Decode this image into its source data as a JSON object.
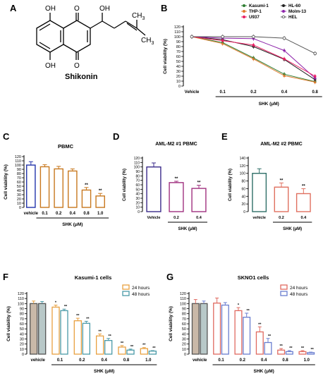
{
  "panels": {
    "A": {
      "letter": "A",
      "molecule_name": "Shikonin"
    },
    "B": {
      "letter": "B"
    },
    "C": {
      "letter": "C"
    },
    "D": {
      "letter": "D"
    },
    "E": {
      "letter": "E"
    },
    "F": {
      "letter": "F"
    },
    "G": {
      "letter": "G"
    }
  },
  "molecule_labels": {
    "oh1": "OH",
    "o1": "O",
    "oh2": "OH",
    "oh3": "OH",
    "o2": "O",
    "ch3a": "CH",
    "ch3b": "CH",
    "sub3": "3"
  },
  "chart_data": [
    {
      "id": "B",
      "type": "line",
      "title": "",
      "xlabel": "SHK (μM)",
      "ylabel": "Cell viability (%)",
      "categories": [
        "Vehicle",
        "0.1",
        "0.2",
        "0.4",
        "0.8"
      ],
      "ylim": [
        0,
        120
      ],
      "yticks": [
        0,
        10,
        20,
        30,
        40,
        50,
        60,
        70,
        80,
        90,
        100,
        110,
        120
      ],
      "legend_position": "top-right",
      "series": [
        {
          "name": "Kasumi-1",
          "color": "#2e7d32",
          "marker": "circle",
          "values": [
            100,
            88,
            57,
            24,
            9
          ]
        },
        {
          "name": "HL-60",
          "color": "#222222",
          "marker": "square",
          "values": [
            100,
            94,
            80,
            54,
            13
          ]
        },
        {
          "name": "THP-1",
          "color": "#e07a2e",
          "marker": "triangle",
          "values": [
            100,
            86,
            55,
            21,
            8
          ]
        },
        {
          "name": "Molm-13",
          "color": "#8e24aa",
          "marker": "diamond",
          "values": [
            100,
            97,
            96,
            72,
            16
          ]
        },
        {
          "name": "U937",
          "color": "#e91e63",
          "marker": "circle",
          "values": [
            100,
            92,
            83,
            55,
            20
          ]
        },
        {
          "name": "HEL",
          "color": "#555555",
          "marker": "circle-open",
          "values": [
            100,
            100,
            100,
            97,
            66
          ]
        }
      ]
    },
    {
      "id": "C",
      "type": "bar",
      "title": "PBMC",
      "xlabel": "SHK (μM)",
      "ylabel": "Cell viability (%)",
      "categories": [
        "vehicle",
        "0.1",
        "0.2",
        "0.4",
        "0.8",
        "1.0"
      ],
      "values": [
        100,
        96,
        91,
        86,
        41,
        27
      ],
      "errors": [
        8,
        5,
        6,
        5,
        6,
        6
      ],
      "significance": [
        "",
        "",
        "",
        "",
        "**",
        "**"
      ],
      "ylim": [
        0,
        120
      ],
      "yticks": [
        0,
        10,
        20,
        30,
        40,
        50,
        60,
        70,
        80,
        90,
        100,
        110,
        120
      ],
      "colors": [
        "#2233aa",
        "#c8781e",
        "#c8781e",
        "#c8781e",
        "#c8781e",
        "#c8781e"
      ]
    },
    {
      "id": "D",
      "type": "bar",
      "title": "AML-M2 #1 PBMC",
      "xlabel": "SHK (μM)",
      "ylabel": "Cell viability (%)",
      "categories": [
        "Vehicle",
        "0.2",
        "0.4"
      ],
      "values": [
        100,
        65,
        52
      ],
      "errors": [
        9,
        3,
        7
      ],
      "significance": [
        "",
        "**",
        "**"
      ],
      "ylim": [
        0,
        120
      ],
      "yticks": [
        0,
        10,
        20,
        30,
        40,
        50,
        60,
        70,
        80,
        90,
        100,
        110,
        120
      ],
      "colors": [
        "#3a2a8a",
        "#a0307f",
        "#a0307f"
      ]
    },
    {
      "id": "E",
      "type": "bar",
      "title": "AML-M2 #2 PBMC",
      "xlabel": "SHK (μM)",
      "ylabel": "Cell viability (%)",
      "categories": [
        "vehicle",
        "0.2",
        "0.4"
      ],
      "values": [
        100,
        64,
        47
      ],
      "errors": [
        12,
        11,
        13
      ],
      "significance": [
        "",
        "**",
        "**"
      ],
      "ylim": [
        0,
        140
      ],
      "yticks": [
        0,
        20,
        40,
        60,
        80,
        100,
        120,
        140
      ],
      "colors": [
        "#2f6f68",
        "#e07060",
        "#e07060"
      ]
    },
    {
      "id": "F",
      "type": "bar",
      "title": "Kasumi-1 cells",
      "xlabel": "SHK (μM)",
      "ylabel": "Cell viability (%)",
      "categories": [
        "vehicle",
        "0.1",
        "0.2",
        "0.4",
        "0.8",
        "1.0"
      ],
      "ylim": [
        0,
        120
      ],
      "yticks": [
        0,
        10,
        20,
        30,
        40,
        50,
        60,
        70,
        80,
        90,
        100,
        110,
        120
      ],
      "legend_position": "top-right",
      "series": [
        {
          "name": "24 hours",
          "color": "#e8a040",
          "values": [
            100,
            93,
            66,
            36,
            14,
            11
          ],
          "errors": [
            5,
            4,
            5,
            4,
            3,
            2
          ],
          "significance": [
            "",
            "*",
            "**",
            "**",
            "**",
            "**"
          ]
        },
        {
          "name": "48 hours",
          "color": "#4a9aa8",
          "values": [
            100,
            86,
            61,
            27,
            8,
            6
          ],
          "errors": [
            4,
            3,
            4,
            4,
            2,
            1
          ],
          "significance": [
            "",
            "**",
            "**",
            "**",
            "**",
            "**"
          ]
        }
      ]
    },
    {
      "id": "G",
      "type": "bar",
      "title": "SKNO1 cells",
      "xlabel": "SHK (μM)",
      "ylabel": "Cell viability (%)",
      "categories": [
        "vehicle",
        "0.1",
        "0.2",
        "0.4",
        "0.8",
        "1.0"
      ],
      "ylim": [
        0,
        120
      ],
      "yticks": [
        0,
        10,
        20,
        30,
        40,
        50,
        60,
        70,
        80,
        90,
        100,
        110,
        120
      ],
      "legend_position": "top-right",
      "series": [
        {
          "name": "24 hours",
          "color": "#e06a60",
          "values": [
            100,
            101,
            86,
            44,
            8,
            5
          ],
          "errors": [
            8,
            10,
            6,
            10,
            3,
            2
          ],
          "significance": [
            "",
            "",
            "*",
            "**",
            "**",
            "**"
          ]
        },
        {
          "name": "48 hours",
          "color": "#6a7ed0",
          "values": [
            100,
            97,
            73,
            23,
            5,
            3
          ],
          "errors": [
            5,
            5,
            8,
            8,
            2,
            1
          ],
          "significance": [
            "",
            "",
            "**",
            "**",
            "**",
            "**"
          ]
        }
      ]
    }
  ]
}
